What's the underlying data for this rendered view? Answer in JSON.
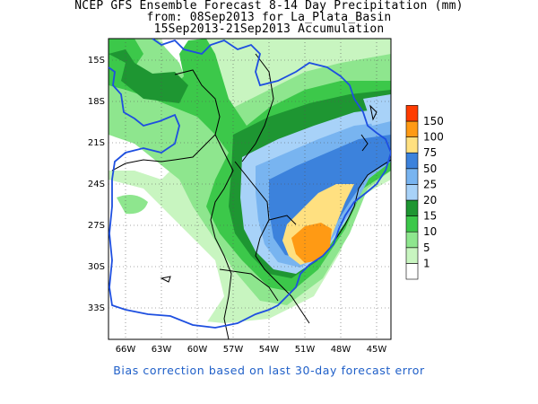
{
  "title": {
    "line1": "NCEP GFS Ensemble Forecast 8-14 Day Precipitation (mm)",
    "line2": "from: 08Sep2013   for La_Plata_Basin",
    "line3": "15Sep2013-21Sep2013 Accumulation"
  },
  "axes": {
    "lat_labels": [
      "15S",
      "18S",
      "21S",
      "24S",
      "27S",
      "30S",
      "33S"
    ],
    "lon_labels": [
      "66W",
      "63W",
      "60W",
      "57W",
      "54W",
      "51W",
      "48W",
      "45W"
    ]
  },
  "legend": {
    "levels": [
      "1",
      "5",
      "10",
      "15",
      "20",
      "25",
      "50",
      "75",
      "100",
      "150"
    ],
    "colors": [
      "#ffffff",
      "#c8f5c0",
      "#8ee68e",
      "#3cc84a",
      "#1e9632",
      "#a8d2f8",
      "#78b4f0",
      "#3c82dc",
      "#ffe080",
      "#ff9a14",
      "#ff3c00"
    ]
  },
  "footer": "Bias correction based on last 30-day forecast error"
}
